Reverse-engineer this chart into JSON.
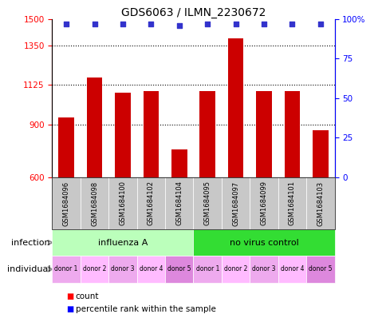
{
  "title": "GDS6063 / ILMN_2230672",
  "samples": [
    "GSM1684096",
    "GSM1684098",
    "GSM1684100",
    "GSM1684102",
    "GSM1684104",
    "GSM1684095",
    "GSM1684097",
    "GSM1684099",
    "GSM1684101",
    "GSM1684103"
  ],
  "counts": [
    940,
    1165,
    1080,
    1090,
    760,
    1090,
    1390,
    1090,
    1090,
    870
  ],
  "percentile_ranks": [
    97,
    97,
    97,
    97,
    96,
    97,
    97,
    97,
    97,
    97
  ],
  "ylim_left": [
    600,
    1500
  ],
  "ylim_right": [
    0,
    100
  ],
  "yticks_left": [
    600,
    900,
    1125,
    1350,
    1500
  ],
  "yticks_right": [
    0,
    25,
    50,
    75,
    100
  ],
  "bar_color": "#cc0000",
  "dot_color": "#3333cc",
  "infection_groups": [
    {
      "label": "influenza A",
      "start": 0,
      "end": 5,
      "color": "#bbffbb"
    },
    {
      "label": "no virus control",
      "start": 5,
      "end": 10,
      "color": "#33dd33"
    }
  ],
  "individual_labels": [
    "donor 1",
    "donor 2",
    "donor 3",
    "donor 4",
    "donor 5",
    "donor 1",
    "donor 2",
    "donor 3",
    "donor 4",
    "donor 5"
  ],
  "individual_colors": [
    "#eeaaee",
    "#ffbbff",
    "#eeaaee",
    "#ffbbff",
    "#dd88dd",
    "#eeaaee",
    "#ffbbff",
    "#eeaaee",
    "#ffbbff",
    "#dd88dd"
  ],
  "infection_label": "infection",
  "individual_label": "individual",
  "background_color": "#ffffff",
  "sample_bg_color": "#c8c8c8",
  "title_fontsize": 10,
  "bar_width": 0.55
}
